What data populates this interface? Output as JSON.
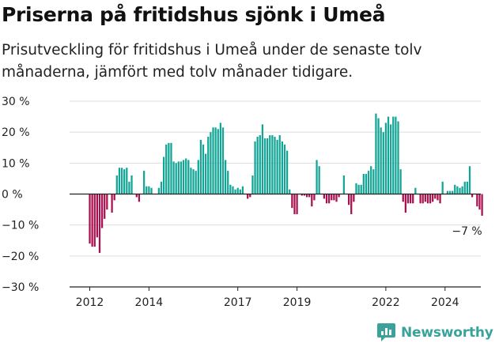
{
  "title": "Priserna på fritidshus sjönk i Umeå",
  "subtitle": "Prisutveckling för fritidshus i Umeå under de senaste tolv månaderna, jämfört med tolv månader tidigare.",
  "brand": "Newsworthy",
  "colors": {
    "positive": "#12a596",
    "negative": "#a8104e",
    "grid": "#dddddd",
    "brand": "#3aa29a"
  },
  "chart_data": {
    "type": "bar",
    "title": "Priserna på fritidshus sjönk i Umeå",
    "xlabel": "",
    "ylabel": "",
    "unit": "%",
    "ylim": [
      -30,
      30
    ],
    "yticks": [
      30,
      20,
      10,
      0,
      -10,
      -20,
      -30
    ],
    "ytick_labels": [
      "30 %",
      "20 %",
      "10 %",
      "0 %",
      "−10 %",
      "−20 %",
      "−30 %"
    ],
    "xticks": [
      {
        "label": "2012",
        "date": "2012-01"
      },
      {
        "label": "2014",
        "date": "2014-01"
      },
      {
        "label": "2017",
        "date": "2017-01"
      },
      {
        "label": "2019",
        "date": "2019-01"
      },
      {
        "label": "2022",
        "date": "2022-01"
      },
      {
        "label": "2024",
        "date": "2024-01"
      }
    ],
    "start": "2012-01",
    "grid": true,
    "annotation": {
      "text": "−7 %",
      "date": "2024-09",
      "value": -7
    },
    "values": [
      -16,
      -17,
      -17,
      -14,
      -19,
      -11,
      -8,
      -5,
      0,
      -6,
      -2,
      6,
      8.5,
      8.5,
      8,
      8.5,
      4,
      6,
      0,
      -1,
      -2.5,
      0,
      7.5,
      2.5,
      2.5,
      2,
      0,
      0,
      2,
      4,
      12,
      16,
      16.5,
      16.5,
      10.5,
      10,
      10.5,
      10.5,
      11,
      11.5,
      11,
      8.5,
      8,
      7.5,
      11,
      17.5,
      16,
      13,
      18.5,
      20,
      21.5,
      21.5,
      21,
      23,
      21.5,
      11,
      7.5,
      3,
      2.5,
      1.5,
      2,
      1.5,
      2.5,
      0,
      -1.5,
      -1,
      6,
      17,
      18.5,
      19,
      22.5,
      18,
      18,
      19,
      19,
      18.5,
      17.5,
      19,
      17,
      16,
      14,
      1.5,
      -4.5,
      -6.5,
      -6.5,
      0,
      -0.5,
      -0.5,
      -1,
      -1,
      -4,
      -2,
      11,
      9,
      0,
      -1.5,
      -3,
      -3,
      -2,
      -2,
      -2.5,
      -1,
      0,
      6,
      0,
      -3.5,
      -6.5,
      -2.5,
      3.5,
      3,
      3,
      6.5,
      6.5,
      7.5,
      9,
      8,
      26,
      24.5,
      21.5,
      20,
      23,
      25,
      22.5,
      25,
      25,
      23.5,
      8,
      -2.5,
      -6,
      -3,
      -3,
      -3,
      2,
      0,
      -3,
      -3,
      -2.5,
      -3,
      -3,
      -2.5,
      -1.5,
      -2,
      -3,
      4,
      0,
      1,
      1,
      1,
      3,
      2.5,
      2,
      2.5,
      4,
      4,
      9,
      -1,
      0,
      -4,
      -5,
      -7
    ]
  }
}
